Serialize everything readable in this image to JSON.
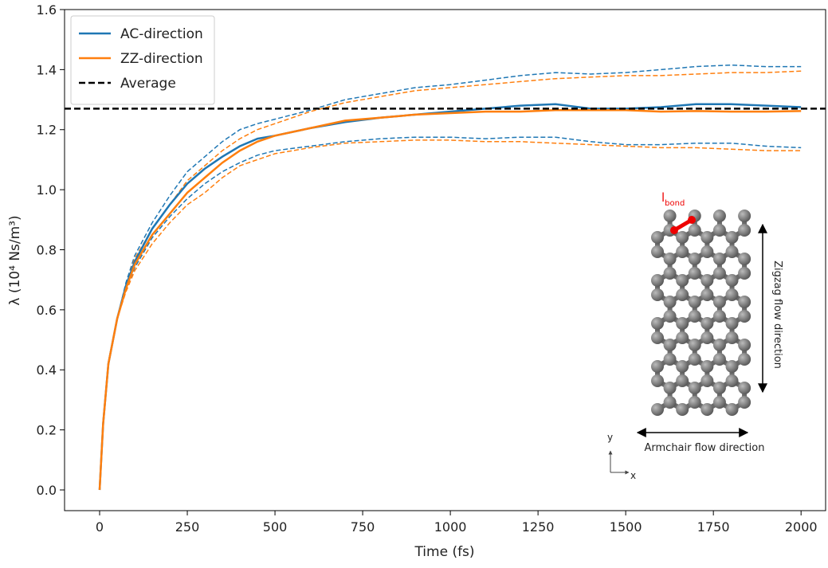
{
  "chart_data": {
    "type": "line",
    "x_label": "Time (fs)",
    "y_label": "λ (10⁴ Ns/m³)",
    "x": [
      0,
      10,
      25,
      50,
      75,
      100,
      150,
      200,
      250,
      300,
      350,
      400,
      450,
      500,
      600,
      700,
      800,
      900,
      1000,
      1100,
      1200,
      1300,
      1400,
      1500,
      1600,
      1700,
      1800,
      1900,
      2000
    ],
    "series": [
      {
        "name": "AC-direction",
        "color": "#1f77b4",
        "values": [
          0,
          0.22,
          0.42,
          0.57,
          0.68,
          0.76,
          0.87,
          0.95,
          1.02,
          1.07,
          1.11,
          1.145,
          1.17,
          1.18,
          1.205,
          1.225,
          1.24,
          1.25,
          1.26,
          1.27,
          1.28,
          1.285,
          1.27,
          1.27,
          1.275,
          1.285,
          1.285,
          1.28,
          1.275
        ],
        "upper": [
          0,
          0.22,
          0.42,
          0.57,
          0.69,
          0.78,
          0.89,
          0.98,
          1.06,
          1.11,
          1.16,
          1.2,
          1.22,
          1.235,
          1.265,
          1.3,
          1.32,
          1.34,
          1.35,
          1.365,
          1.38,
          1.39,
          1.385,
          1.39,
          1.4,
          1.41,
          1.415,
          1.41,
          1.41
        ],
        "lower": [
          0,
          0.22,
          0.42,
          0.57,
          0.67,
          0.74,
          0.84,
          0.91,
          0.97,
          1.02,
          1.06,
          1.09,
          1.115,
          1.13,
          1.145,
          1.16,
          1.17,
          1.175,
          1.175,
          1.17,
          1.175,
          1.175,
          1.16,
          1.15,
          1.15,
          1.155,
          1.155,
          1.145,
          1.14
        ]
      },
      {
        "name": "ZZ-direction",
        "color": "#ff7f0e",
        "values": [
          0,
          0.22,
          0.42,
          0.57,
          0.67,
          0.75,
          0.85,
          0.92,
          0.99,
          1.04,
          1.09,
          1.13,
          1.16,
          1.18,
          1.205,
          1.23,
          1.24,
          1.25,
          1.255,
          1.26,
          1.26,
          1.265,
          1.265,
          1.265,
          1.26,
          1.262,
          1.26,
          1.26,
          1.262
        ],
        "upper": [
          0,
          0.22,
          0.42,
          0.57,
          0.68,
          0.77,
          0.87,
          0.95,
          1.03,
          1.08,
          1.13,
          1.17,
          1.2,
          1.22,
          1.26,
          1.29,
          1.31,
          1.33,
          1.34,
          1.35,
          1.36,
          1.37,
          1.375,
          1.38,
          1.38,
          1.385,
          1.39,
          1.39,
          1.395
        ],
        "lower": [
          0,
          0.22,
          0.42,
          0.57,
          0.66,
          0.73,
          0.82,
          0.89,
          0.95,
          0.99,
          1.04,
          1.08,
          1.1,
          1.12,
          1.14,
          1.155,
          1.16,
          1.165,
          1.165,
          1.16,
          1.16,
          1.155,
          1.15,
          1.145,
          1.14,
          1.14,
          1.135,
          1.13,
          1.13
        ]
      }
    ],
    "reference_line": {
      "name": "Average",
      "value": 1.27,
      "color": "#000000"
    },
    "xlim": [
      -100,
      2070
    ],
    "ylim": [
      -0.069,
      1.6
    ],
    "xticks": [
      0,
      250,
      500,
      750,
      1000,
      1250,
      1500,
      1750,
      2000
    ],
    "yticks": [
      {
        "value": 0,
        "label": "0.0"
      },
      0.2,
      0.4,
      0.6,
      0.8,
      {
        "value": 1,
        "label": "1.0"
      },
      1.2,
      1.4,
      1.6
    ],
    "legend": "upper left",
    "inset": {
      "bond_label": "l",
      "bond_subscript": "bond",
      "vertical_label": "Zigzag flow direction",
      "horizontal_label": "Armchair flow direction",
      "axis_y": "y",
      "axis_x": "x"
    }
  }
}
